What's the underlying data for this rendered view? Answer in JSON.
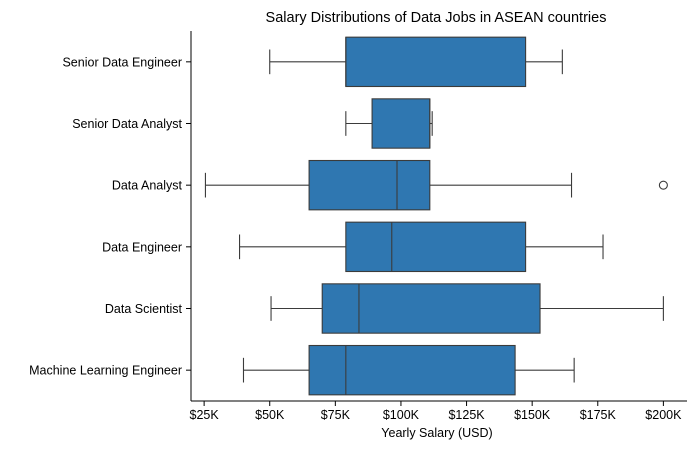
{
  "chart_data": {
    "type": "boxplot",
    "orientation": "horizontal",
    "title": "Salary Distributions of Data Jobs in ASEAN countries",
    "xlabel": "Yearly Salary (USD)",
    "ylabel": "",
    "xlim": [
      20000,
      209000
    ],
    "xticks": [
      25000,
      50000,
      75000,
      100000,
      125000,
      150000,
      175000,
      200000
    ],
    "xtick_labels": [
      "$25K",
      "$50K",
      "$75K",
      "$100K",
      "$125K",
      "$150K",
      "$175K",
      "$200K"
    ],
    "box_color": "#2f77b1",
    "line_color": "#3b3b3b",
    "grid": false,
    "categories": [
      "Senior Data Engineer",
      "Senior Data Analyst",
      "Data Analyst",
      "Data Engineer",
      "Data Scientist",
      "Machine Learning Engineer"
    ],
    "boxes": [
      {
        "whisker_low": 50000,
        "q1": 79000,
        "median": 79000,
        "q3": 147500,
        "whisker_high": 161500,
        "outliers": []
      },
      {
        "whisker_low": 79000,
        "q1": 89000,
        "median": 111000,
        "q3": 111000,
        "whisker_high": 111900,
        "outliers": []
      },
      {
        "whisker_low": 25500,
        "q1": 65000,
        "median": 98500,
        "q3": 111000,
        "whisker_high": 165000,
        "outliers": [
          200000
        ]
      },
      {
        "whisker_low": 38500,
        "q1": 79000,
        "median": 96500,
        "q3": 147500,
        "whisker_high": 177000,
        "outliers": []
      },
      {
        "whisker_low": 50500,
        "q1": 70000,
        "median": 84000,
        "q3": 153000,
        "whisker_high": 200000,
        "outliers": []
      },
      {
        "whisker_low": 40000,
        "q1": 65000,
        "median": 79000,
        "q3": 143500,
        "whisker_high": 166000,
        "outliers": []
      }
    ]
  }
}
